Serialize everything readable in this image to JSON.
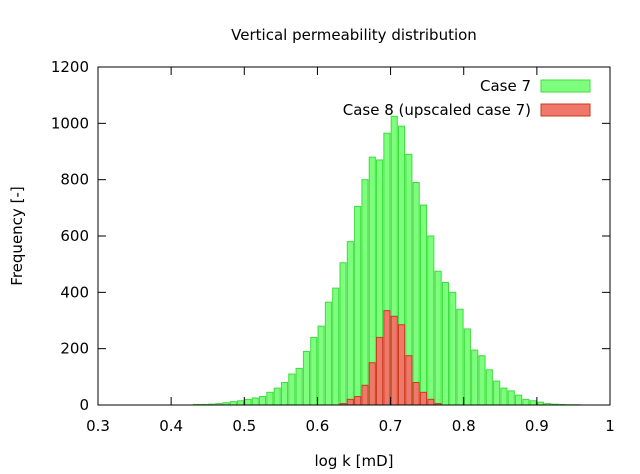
{
  "chart_data": {
    "type": "bar",
    "title": "Vertical permeability distribution",
    "xlabel": "log k [mD]",
    "ylabel": "Frequency [-]",
    "xlim": [
      0.3,
      1.0
    ],
    "ylim": [
      0,
      1200
    ],
    "xticks": [
      "0.3",
      "0.4",
      "0.5",
      "0.6",
      "0.7",
      "0.8",
      "0.9",
      "1"
    ],
    "yticks": [
      "0",
      "200",
      "400",
      "600",
      "800",
      "1000",
      "1200"
    ],
    "grid": false,
    "legend_position": "top-right",
    "bin_width": 0.01,
    "series": [
      {
        "name": "Case 7",
        "color": "#7dff7d",
        "edge_color": "#3fdc3f",
        "x": [
          0.435,
          0.445,
          0.455,
          0.465,
          0.475,
          0.485,
          0.495,
          0.505,
          0.515,
          0.525,
          0.535,
          0.545,
          0.555,
          0.565,
          0.575,
          0.585,
          0.595,
          0.605,
          0.615,
          0.625,
          0.635,
          0.645,
          0.655,
          0.665,
          0.675,
          0.685,
          0.695,
          0.705,
          0.715,
          0.725,
          0.735,
          0.745,
          0.755,
          0.765,
          0.775,
          0.785,
          0.795,
          0.805,
          0.815,
          0.825,
          0.835,
          0.845,
          0.855,
          0.865,
          0.875,
          0.885,
          0.895,
          0.905,
          0.915,
          0.925,
          0.935,
          0.945,
          0.955
        ],
        "values": [
          2,
          2,
          3,
          5,
          8,
          12,
          15,
          20,
          25,
          30,
          45,
          60,
          80,
          110,
          130,
          190,
          240,
          280,
          365,
          415,
          505,
          580,
          705,
          800,
          880,
          870,
          965,
          1025,
          990,
          890,
          790,
          710,
          600,
          475,
          435,
          400,
          340,
          270,
          195,
          175,
          125,
          85,
          60,
          50,
          35,
          20,
          15,
          10,
          5,
          3,
          2,
          1,
          1
        ]
      },
      {
        "name": "Case 8 (upscaled case 7)",
        "color": "#f0786b",
        "edge_color": "#c83c1e",
        "x": [
          0.635,
          0.645,
          0.655,
          0.665,
          0.675,
          0.685,
          0.695,
          0.705,
          0.715,
          0.725,
          0.735,
          0.745,
          0.755,
          0.765
        ],
        "values": [
          5,
          20,
          30,
          70,
          150,
          240,
          335,
          315,
          285,
          175,
          80,
          45,
          20,
          5
        ]
      }
    ]
  }
}
